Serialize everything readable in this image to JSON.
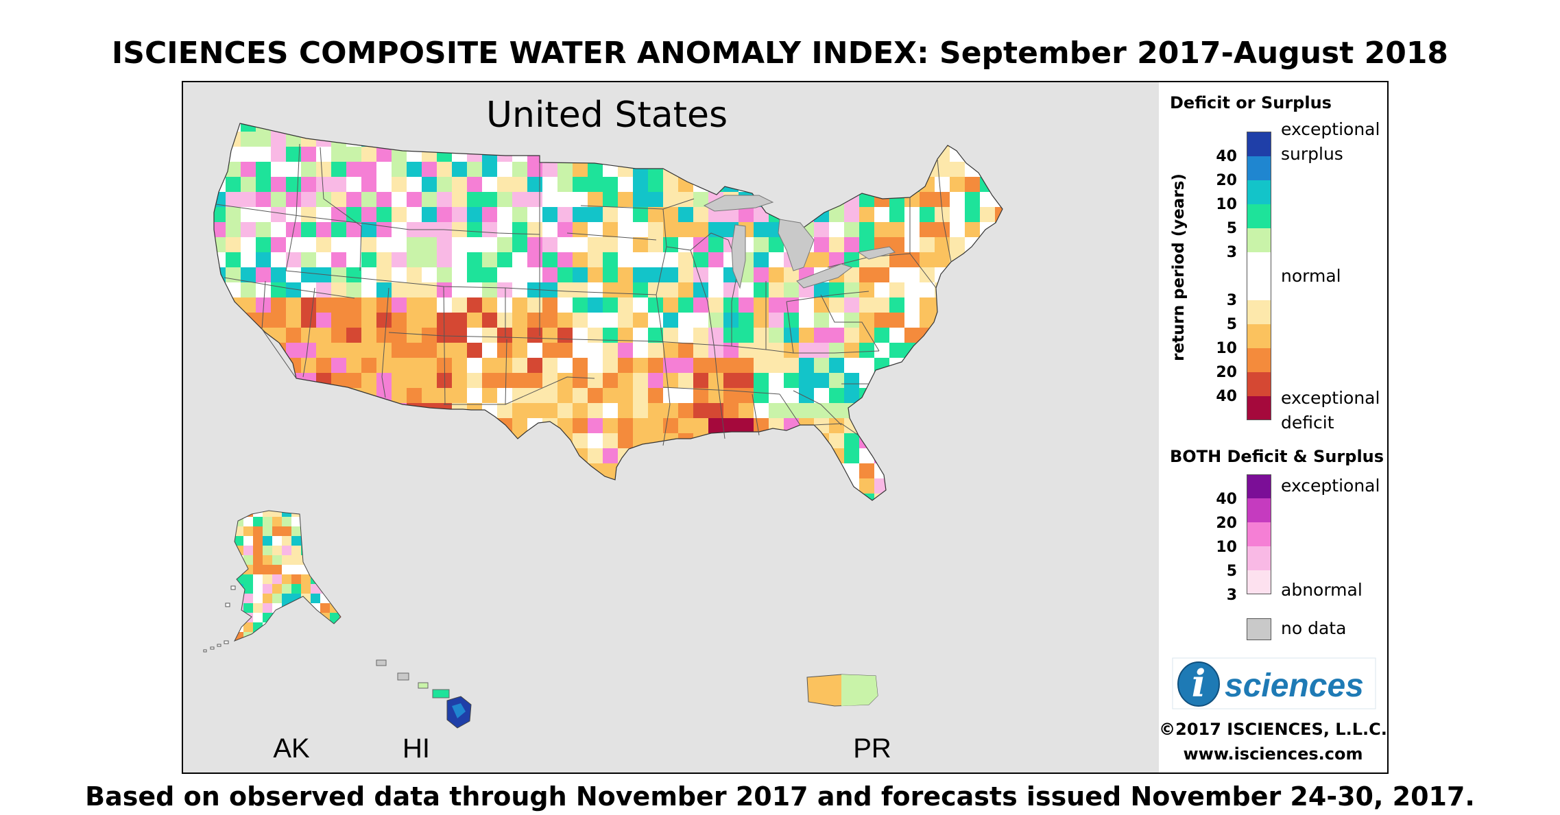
{
  "title": "ISCIENCES COMPOSITE WATER ANOMALY INDEX: September 2017-August 2018",
  "footer": "Based on observed data through November 2017 and forecasts issued November 24-30, 2017.",
  "map": {
    "region_title": "United States",
    "inset_labels": {
      "ak": "AK",
      "hi": "HI",
      "pr": "PR"
    },
    "background_color": "#e3e3e3"
  },
  "legend": {
    "deficit_surplus_heading": "Deficit or Surplus",
    "axis_label": "return period (years)",
    "surplus_labels": {
      "exceptional": "exceptional",
      "surplus": "surplus"
    },
    "normal_label": "normal",
    "deficit_labels": {
      "exceptional": "exceptional",
      "deficit": "deficit"
    },
    "surplus_ticks": [
      "40",
      "20",
      "10",
      "5",
      "3"
    ],
    "deficit_ticks": [
      "3",
      "5",
      "10",
      "20",
      "40"
    ],
    "surplus_colors": [
      "#1f3fa8",
      "#1f86d0",
      "#13c4c9",
      "#1ee39a",
      "#c9f3a9"
    ],
    "normal_color": "#ffffff",
    "deficit_colors": [
      "#fde8ab",
      "#fbc25e",
      "#f48b3c",
      "#d54833",
      "#a5093c"
    ],
    "both_heading": "BOTH Deficit & Surplus",
    "both_labels": {
      "exceptional": "exceptional",
      "abnormal": "abnormal"
    },
    "both_ticks": [
      "40",
      "20",
      "10",
      "5",
      "3"
    ],
    "both_colors": [
      "#7b0e97",
      "#c53bbf",
      "#f57fd5",
      "#f9b9e5",
      "#fde1ef"
    ],
    "no_data_label": "no data",
    "no_data_color": "#c9c9c9"
  },
  "branding": {
    "logo_letter": "i",
    "logo_text": "sciences",
    "copyright": "©2017 ISCIENCES, L.L.C.",
    "website": "www.isciences.com"
  }
}
